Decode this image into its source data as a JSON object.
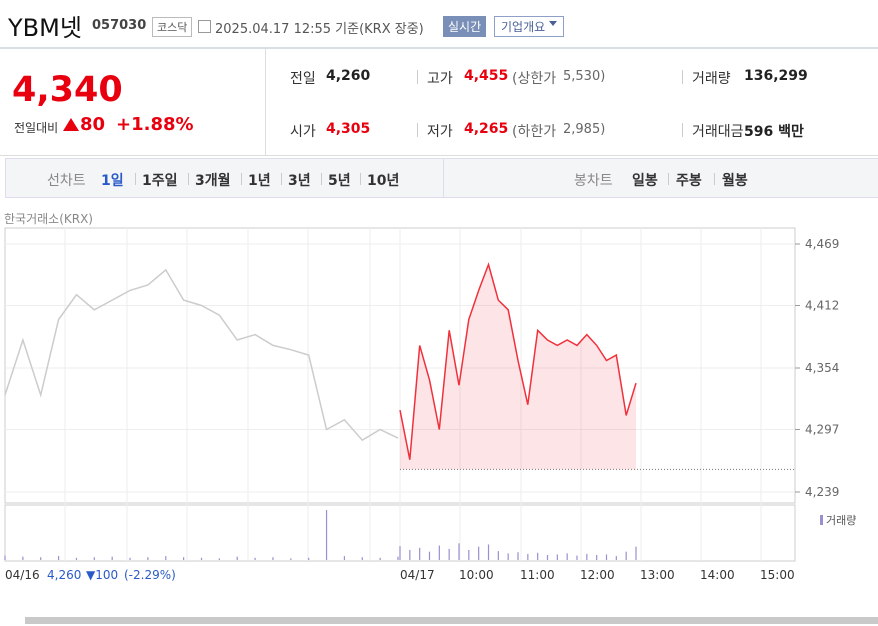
{
  "header": {
    "name": "YBM넷",
    "code": "057030",
    "market": "코스닥",
    "datetime": "2025.04.17 12:55 기준(KRX 장중)",
    "realtime": "실시간",
    "company": "기업개요"
  },
  "price": {
    "now": "4,340",
    "change_label": "전일대비",
    "change": "80",
    "rate": "+1.88%"
  },
  "stats": {
    "rows": [
      [
        {
          "label": "전일",
          "value": "4,260"
        },
        {
          "label": "고가",
          "value": "4,455",
          "sub_label": "(상한가",
          "sub_value": "5,530)"
        },
        {
          "label": "거래량",
          "value": "136,299"
        }
      ],
      [
        {
          "label": "시가",
          "value": "4,305"
        },
        {
          "label": "저가",
          "value": "4,265",
          "sub_label": "(하한가",
          "sub_value": "2,985)"
        },
        {
          "label": "거래대금",
          "value": "596 백만"
        }
      ]
    ]
  },
  "tabs": {
    "line_label": "선차트",
    "line": [
      "1일",
      "1주일",
      "3개월",
      "1년",
      "3년",
      "5년",
      "10년"
    ],
    "candle_label": "봉차트",
    "candle": [
      "일봉",
      "주봉",
      "월봉"
    ]
  },
  "chart": {
    "type": "line",
    "source": "한국거래소(KRX)",
    "ylim": [
      4239,
      4469
    ],
    "yticks": [
      {
        "value": 4469,
        "label": "4,469"
      },
      {
        "value": 4412,
        "label": "4,412"
      },
      {
        "value": 4354,
        "label": "4,354"
      },
      {
        "value": 4297,
        "label": "4,297"
      },
      {
        "value": 4239,
        "label": "4,239"
      }
    ],
    "xlabels": [
      "04/16",
      "04/17",
      "10:00",
      "11:00",
      "12:00",
      "13:00",
      "14:00",
      "15:00"
    ],
    "base": 4260,
    "prev": {
      "color": "#cccccc",
      "values": [
        4329,
        4380,
        4329,
        4399,
        4422,
        4408,
        4417,
        4426,
        4431,
        4445,
        4417,
        4412,
        4403,
        4380,
        4385,
        4375,
        4371,
        4366,
        4297,
        4306,
        4287,
        4297,
        4289
      ]
    },
    "today": {
      "color": "#f0313c",
      "values": [
        4315,
        4269,
        4375,
        4343,
        4297,
        4389,
        4338,
        4399,
        4426,
        4450,
        4417,
        4408,
        4361,
        4320,
        4389,
        4380,
        4375,
        4380,
        4375,
        4385,
        4375,
        4361,
        4366,
        4310,
        4340
      ]
    },
    "volume_label": "거래량",
    "prev_volume": [
      800,
      600,
      500,
      700,
      400,
      500,
      600,
      400,
      500,
      700,
      500,
      400,
      300,
      600,
      400,
      500,
      300,
      400,
      9000,
      700,
      500,
      400,
      600
    ],
    "today_volume": [
      2500,
      1800,
      2200,
      1500,
      2600,
      2000,
      3000,
      1800,
      2400,
      2800,
      1600,
      1200,
      1400,
      1100,
      1300,
      900,
      1000,
      1200,
      800,
      1100,
      900,
      1000,
      700,
      1500,
      2400
    ],
    "volume_color": "#9a8fcf",
    "summary": {
      "date": "04/16",
      "close": "4,260",
      "change": "▼100",
      "rate": "(-2.29%)"
    }
  }
}
